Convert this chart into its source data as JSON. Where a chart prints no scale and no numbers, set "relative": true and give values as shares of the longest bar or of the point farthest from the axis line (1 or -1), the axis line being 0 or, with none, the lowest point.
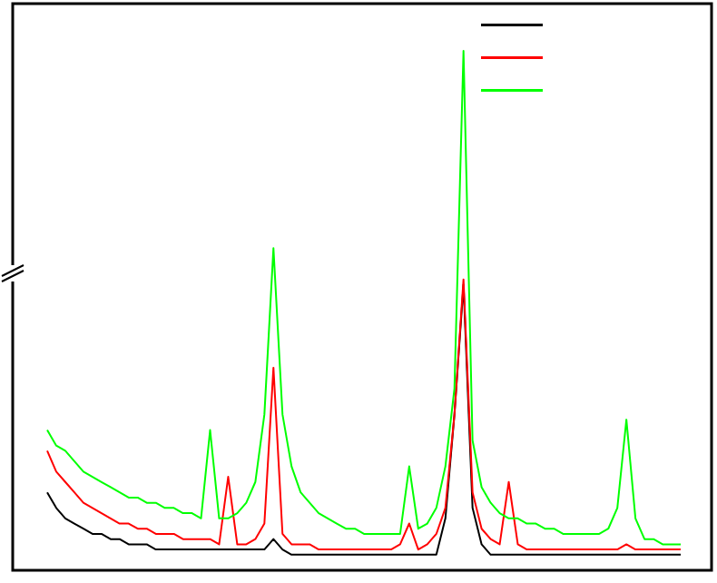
{
  "chart_data": {
    "type": "line",
    "relative": true,
    "line_style": "solid",
    "marker": "none",
    "categories": [
      null,
      null,
      null,
      null,
      null,
      null,
      null,
      null,
      null,
      null,
      null,
      null,
      null,
      null,
      null,
      null,
      null,
      null,
      null,
      null,
      null,
      null,
      null,
      null,
      null,
      null,
      null,
      null,
      null,
      null,
      null,
      null,
      null,
      null,
      null,
      null,
      null,
      null,
      null,
      null,
      null,
      null,
      null,
      null,
      null,
      null,
      null,
      null,
      null,
      null,
      null,
      null,
      null,
      null,
      null,
      null,
      null,
      null,
      null,
      null,
      null,
      null,
      null,
      null,
      null,
      null,
      null,
      null,
      null,
      null,
      null
    ],
    "series": [
      {
        "color": "#000000",
        "values": [
          0.15,
          0.12,
          0.1,
          0.09,
          0.08,
          0.07,
          0.07,
          0.06,
          0.06,
          0.05,
          0.05,
          0.05,
          0.04,
          0.04,
          0.04,
          0.04,
          0.04,
          0.04,
          0.04,
          0.04,
          0.04,
          0.04,
          0.04,
          0.04,
          0.04,
          0.06,
          0.04,
          0.03,
          0.03,
          0.03,
          0.03,
          0.03,
          0.03,
          0.03,
          0.03,
          0.03,
          0.03,
          0.03,
          0.03,
          0.03,
          0.03,
          0.03,
          0.03,
          0.03,
          0.1,
          0.3,
          0.55,
          0.12,
          0.05,
          0.03,
          0.03,
          0.03,
          0.03,
          0.03,
          0.03,
          0.03,
          0.03,
          0.03,
          0.03,
          0.03,
          0.03,
          0.03,
          0.03,
          0.03,
          0.03,
          0.03,
          0.03,
          0.03,
          0.03,
          0.03,
          0.03
        ]
      },
      {
        "color": "#ff0000",
        "values": [
          0.23,
          0.19,
          0.17,
          0.15,
          0.13,
          0.12,
          0.11,
          0.1,
          0.09,
          0.09,
          0.08,
          0.08,
          0.07,
          0.07,
          0.07,
          0.06,
          0.06,
          0.06,
          0.06,
          0.05,
          0.18,
          0.05,
          0.05,
          0.06,
          0.09,
          0.39,
          0.07,
          0.05,
          0.05,
          0.05,
          0.04,
          0.04,
          0.04,
          0.04,
          0.04,
          0.04,
          0.04,
          0.04,
          0.04,
          0.05,
          0.09,
          0.04,
          0.05,
          0.07,
          0.12,
          0.3,
          0.56,
          0.15,
          0.08,
          0.06,
          0.05,
          0.17,
          0.05,
          0.04,
          0.04,
          0.04,
          0.04,
          0.04,
          0.04,
          0.04,
          0.04,
          0.04,
          0.04,
          0.04,
          0.05,
          0.04,
          0.04,
          0.04,
          0.04,
          0.04,
          0.04
        ]
      },
      {
        "color": "#00ff00",
        "values": [
          0.27,
          0.24,
          0.23,
          0.21,
          0.19,
          0.18,
          0.17,
          0.16,
          0.15,
          0.14,
          0.14,
          0.13,
          0.13,
          0.12,
          0.12,
          0.11,
          0.11,
          0.1,
          0.27,
          0.1,
          0.1,
          0.11,
          0.13,
          0.17,
          0.3,
          0.62,
          0.3,
          0.2,
          0.15,
          0.13,
          0.11,
          0.1,
          0.09,
          0.08,
          0.08,
          0.07,
          0.07,
          0.07,
          0.07,
          0.07,
          0.2,
          0.08,
          0.09,
          0.12,
          0.2,
          0.35,
          1.0,
          0.25,
          0.16,
          0.13,
          0.11,
          0.1,
          0.1,
          0.09,
          0.09,
          0.08,
          0.08,
          0.07,
          0.07,
          0.07,
          0.07,
          0.07,
          0.08,
          0.12,
          0.29,
          0.1,
          0.06,
          0.06,
          0.05,
          0.05,
          0.05
        ]
      }
    ]
  }
}
